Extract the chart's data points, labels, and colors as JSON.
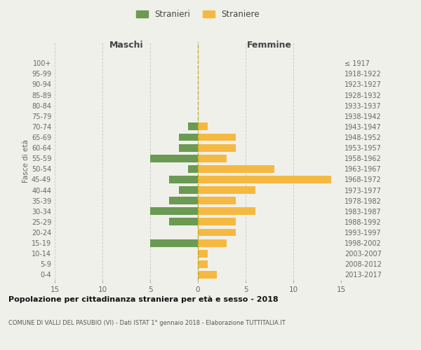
{
  "age_groups": [
    "0-4",
    "5-9",
    "10-14",
    "15-19",
    "20-24",
    "25-29",
    "30-34",
    "35-39",
    "40-44",
    "45-49",
    "50-54",
    "55-59",
    "60-64",
    "65-69",
    "70-74",
    "75-79",
    "80-84",
    "85-89",
    "90-94",
    "95-99",
    "100+"
  ],
  "birth_years": [
    "2013-2017",
    "2008-2012",
    "2003-2007",
    "1998-2002",
    "1993-1997",
    "1988-1992",
    "1983-1987",
    "1978-1982",
    "1973-1977",
    "1968-1972",
    "1963-1967",
    "1958-1962",
    "1953-1957",
    "1948-1952",
    "1943-1947",
    "1938-1942",
    "1933-1937",
    "1928-1932",
    "1923-1927",
    "1918-1922",
    "≤ 1917"
  ],
  "maschi": [
    0,
    0,
    0,
    5,
    0,
    3,
    5,
    3,
    2,
    3,
    1,
    5,
    2,
    2,
    1,
    0,
    0,
    0,
    0,
    0,
    0
  ],
  "femmine": [
    2,
    1,
    1,
    3,
    4,
    4,
    6,
    4,
    6,
    14,
    8,
    3,
    4,
    4,
    1,
    0,
    0,
    0,
    0,
    0,
    0
  ],
  "maschi_color": "#6b9a52",
  "femmine_color": "#f5b942",
  "title": "Popolazione per cittadinanza straniera per età e sesso - 2018",
  "subtitle": "COMUNE DI VALLI DEL PASUBIO (VI) - Dati ISTAT 1° gennaio 2018 - Elaborazione TUTTITALIA.IT",
  "xlabel_left": "Maschi",
  "xlabel_right": "Femmine",
  "ylabel_left": "Fasce di età",
  "legend_stranieri": "Stranieri",
  "legend_straniere": "Straniere",
  "xlim": 15,
  "background_color": "#f0f0eb",
  "grid_color": "#cccccc"
}
